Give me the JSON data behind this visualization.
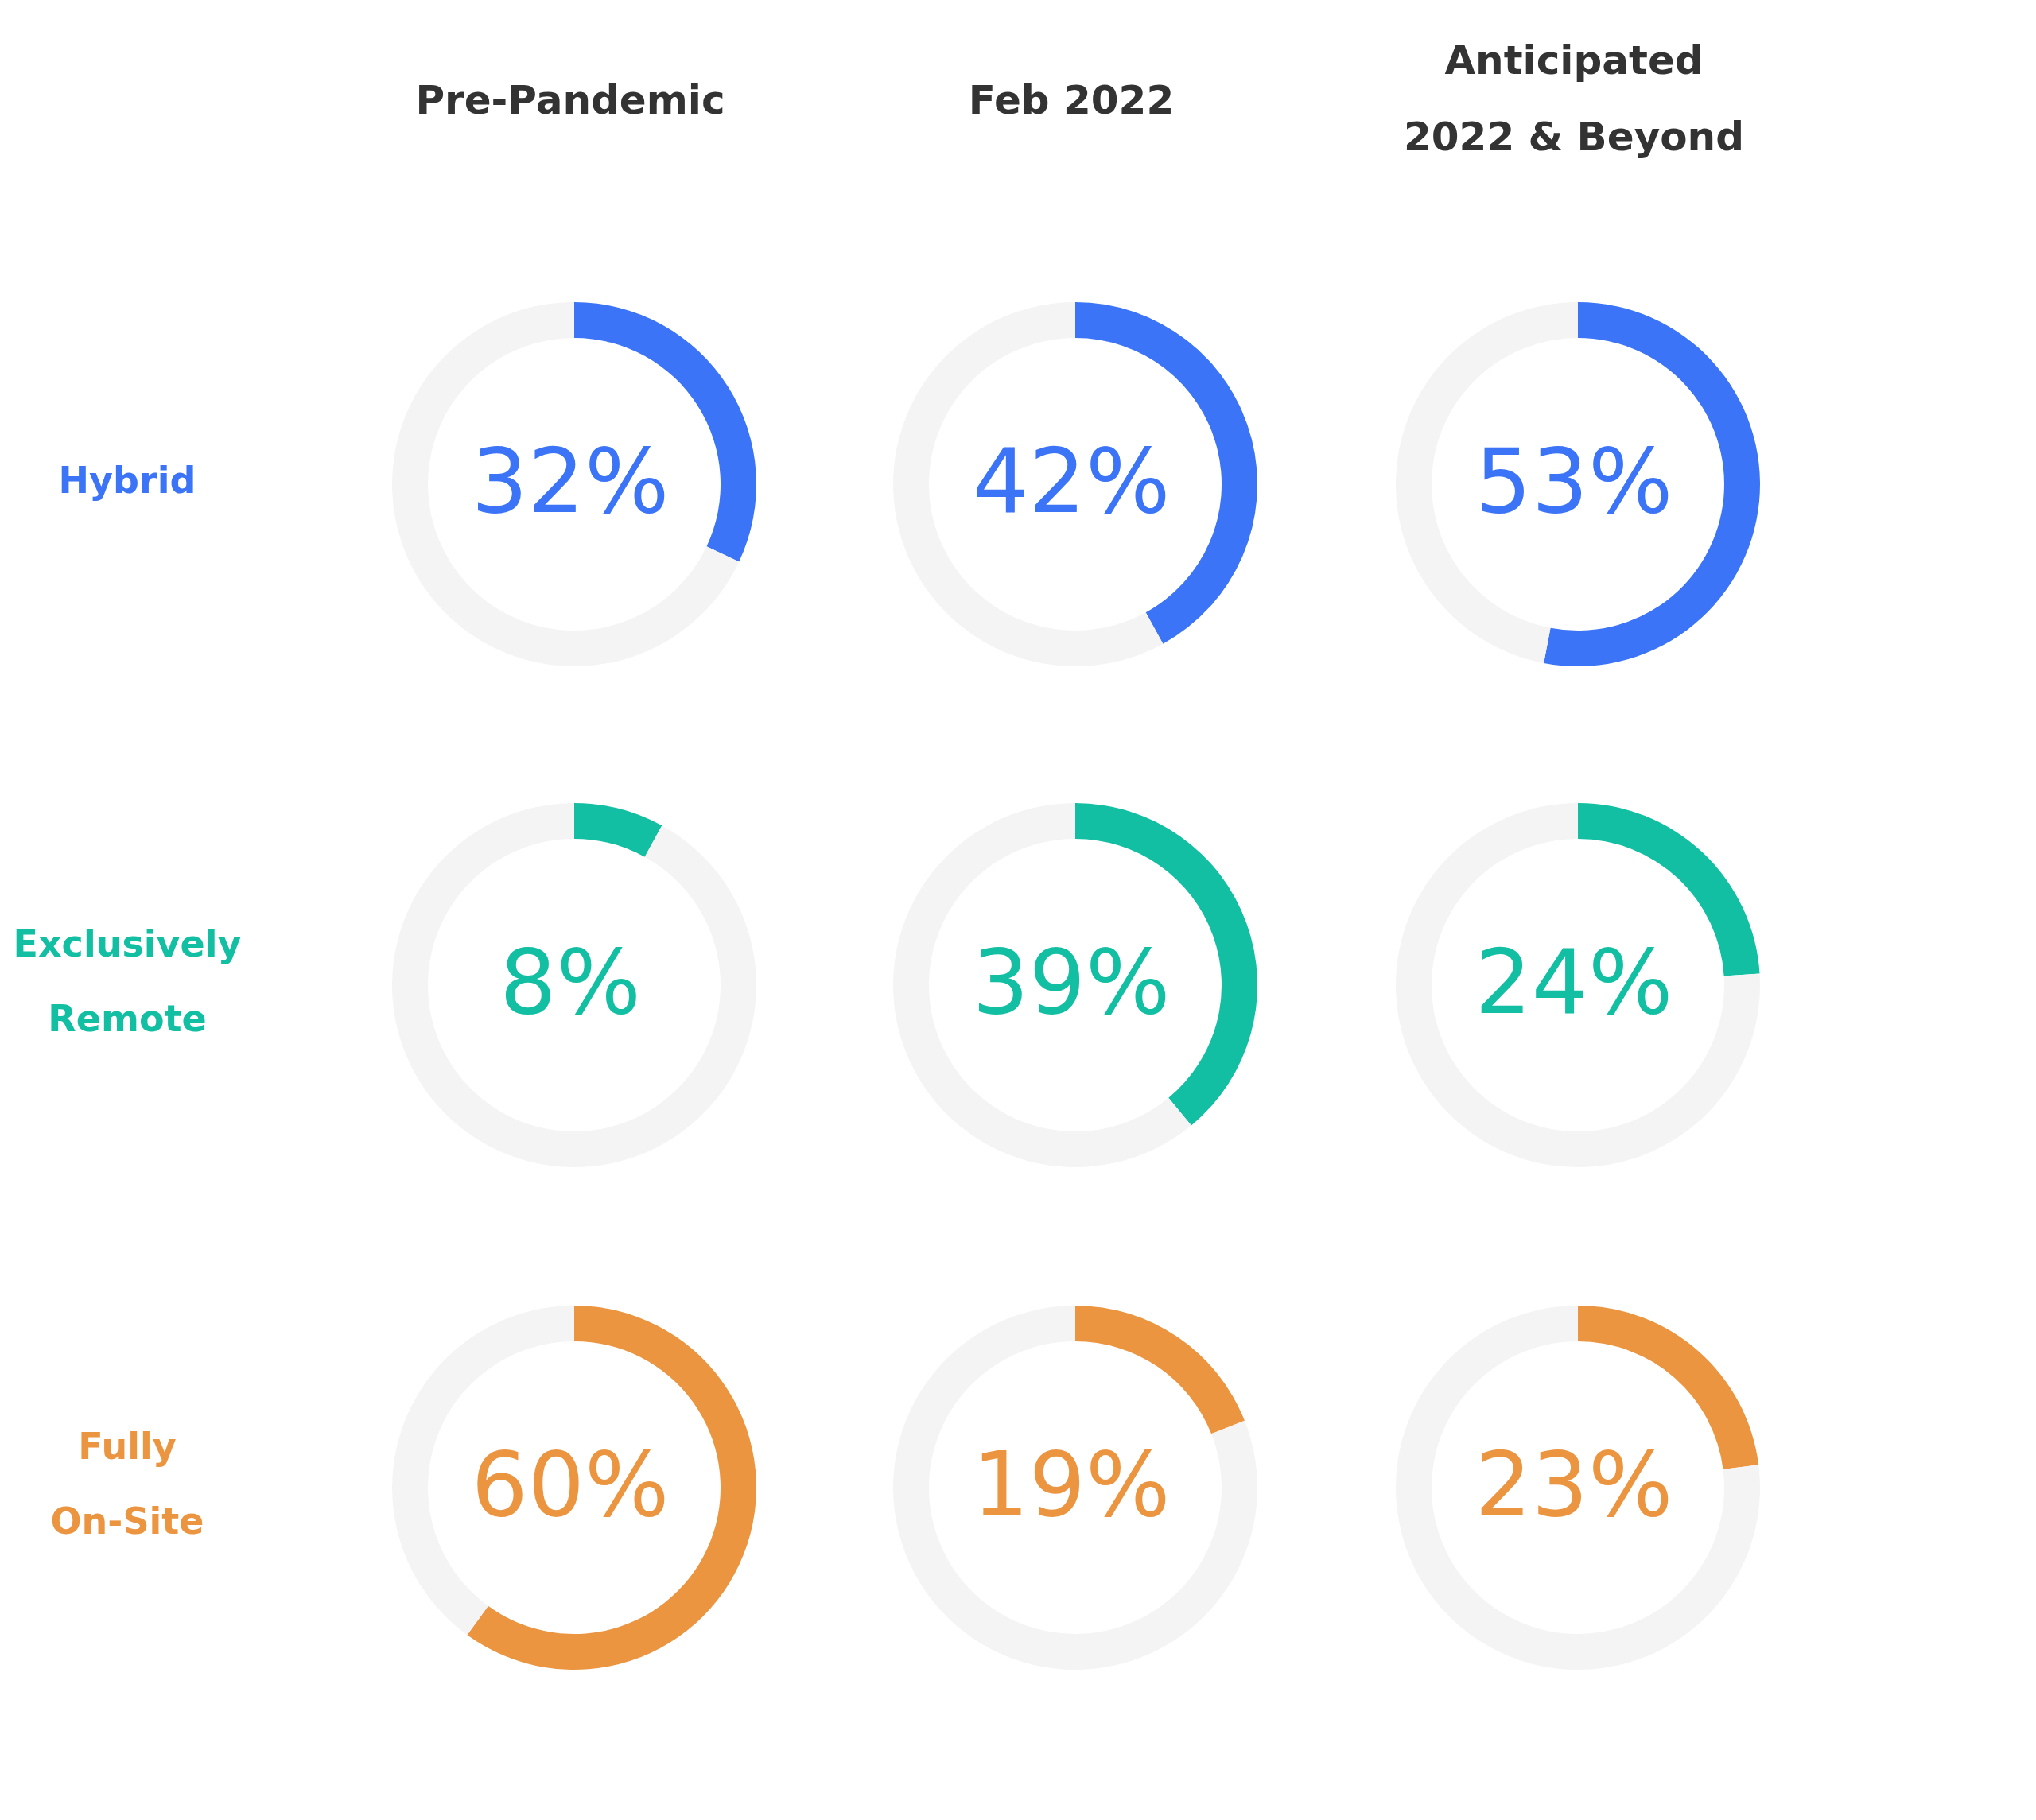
{
  "chart_data": [
    {
      "type": "donut",
      "title": "Pre-Pandemic",
      "ylabel": "Hybrid",
      "categories": [
        null,
        null
      ],
      "values": [
        32,
        68
      ],
      "colors": [
        "#3b74f6",
        "#f4f4f4"
      ],
      "annotations": [
        "32%"
      ]
    },
    {
      "type": "donut",
      "title": "Feb 2022",
      "categories": [
        null,
        null
      ],
      "values": [
        42,
        58
      ],
      "colors": [
        "#3b74f6",
        "#f4f4f4"
      ],
      "annotations": [
        "42%"
      ]
    },
    {
      "type": "donut",
      "title": "Anticipated\n2022 & Beyond",
      "categories": [
        null,
        null
      ],
      "values": [
        53,
        47
      ],
      "colors": [
        "#3b74f6",
        "#f4f4f4"
      ],
      "annotations": [
        "53%"
      ]
    },
    {
      "type": "donut",
      "ylabel": "Exclusively\nRemote",
      "categories": [
        null,
        null
      ],
      "values": [
        8,
        92
      ],
      "colors": [
        "#12bfa3",
        "#f4f4f4"
      ],
      "annotations": [
        "8%"
      ]
    },
    {
      "type": "donut",
      "categories": [
        null,
        null
      ],
      "values": [
        39,
        61
      ],
      "colors": [
        "#12bfa3",
        "#f4f4f4"
      ],
      "annotations": [
        "39%"
      ]
    },
    {
      "type": "donut",
      "categories": [
        null,
        null
      ],
      "values": [
        24,
        76
      ],
      "colors": [
        "#12bfa3",
        "#f4f4f4"
      ],
      "annotations": [
        "24%"
      ]
    },
    {
      "type": "donut",
      "ylabel": "Fully\nOn-Site",
      "categories": [
        null,
        null
      ],
      "values": [
        60,
        40
      ],
      "colors": [
        "#ec9540",
        "#f4f4f4"
      ],
      "annotations": [
        "60%"
      ]
    },
    {
      "type": "donut",
      "categories": [
        null,
        null
      ],
      "values": [
        19,
        81
      ],
      "colors": [
        "#ec9540",
        "#f4f4f4"
      ],
      "annotations": [
        "19%"
      ]
    },
    {
      "type": "donut",
      "categories": [
        null,
        null
      ],
      "values": [
        23,
        77
      ],
      "colors": [
        "#ec9540",
        "#f4f4f4"
      ],
      "annotations": [
        "23%"
      ]
    }
  ]
}
